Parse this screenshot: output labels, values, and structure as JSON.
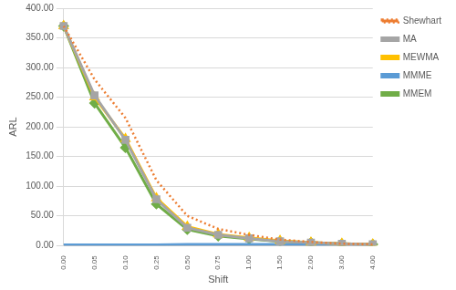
{
  "chart_data": {
    "type": "line",
    "x_label": "Shift",
    "y_label": "ARL",
    "categories": [
      "0.00",
      "0.05",
      "0.10",
      "0.25",
      "0.50",
      "0.75",
      "1.00",
      "1.50",
      "2.00",
      "3.00",
      "4.00"
    ],
    "series": [
      {
        "name": "Shewhart",
        "color": "#ed7d31",
        "marker": "none",
        "line_style": "dotted",
        "values": [
          370,
          280,
          215,
          110,
          50,
          28,
          18,
          10,
          6,
          3,
          2
        ]
      },
      {
        "name": "MA",
        "color": "#a5a5a5",
        "marker": "square",
        "line_style": "solid",
        "values": [
          370,
          253,
          178,
          78,
          30,
          18,
          12,
          7,
          5,
          3,
          2
        ]
      },
      {
        "name": "MEWMA",
        "color": "#ffc000",
        "marker": "triangle",
        "line_style": "solid",
        "values": [
          370,
          250,
          180,
          80,
          32,
          19,
          13,
          8,
          5,
          3,
          2
        ]
      },
      {
        "name": "MMME",
        "color": "#5b9bd5",
        "marker": "none",
        "line_style": "solid",
        "values": [
          1,
          1,
          1,
          1,
          2,
          2,
          2,
          2,
          2,
          2,
          2
        ]
      },
      {
        "name": "MMEM",
        "color": "#70ad47",
        "marker": "diamond",
        "line_style": "solid",
        "values": [
          370,
          240,
          165,
          70,
          27,
          16,
          11,
          7,
          5,
          3,
          2
        ]
      }
    ],
    "ylim": [
      0,
      400
    ],
    "yticks": [
      {
        "value": 0,
        "label": "0.00"
      },
      {
        "value": 50,
        "label": "50.00"
      },
      {
        "value": 100,
        "label": "100.00"
      },
      {
        "value": 150,
        "label": "150.00"
      },
      {
        "value": 200,
        "label": "200.00"
      },
      {
        "value": 250,
        "label": "250.00"
      },
      {
        "value": 300,
        "label": "300.00"
      },
      {
        "value": 350,
        "label": "350.00"
      },
      {
        "value": 400,
        "label": "400.00"
      }
    ],
    "grid": true,
    "legend": "right"
  }
}
